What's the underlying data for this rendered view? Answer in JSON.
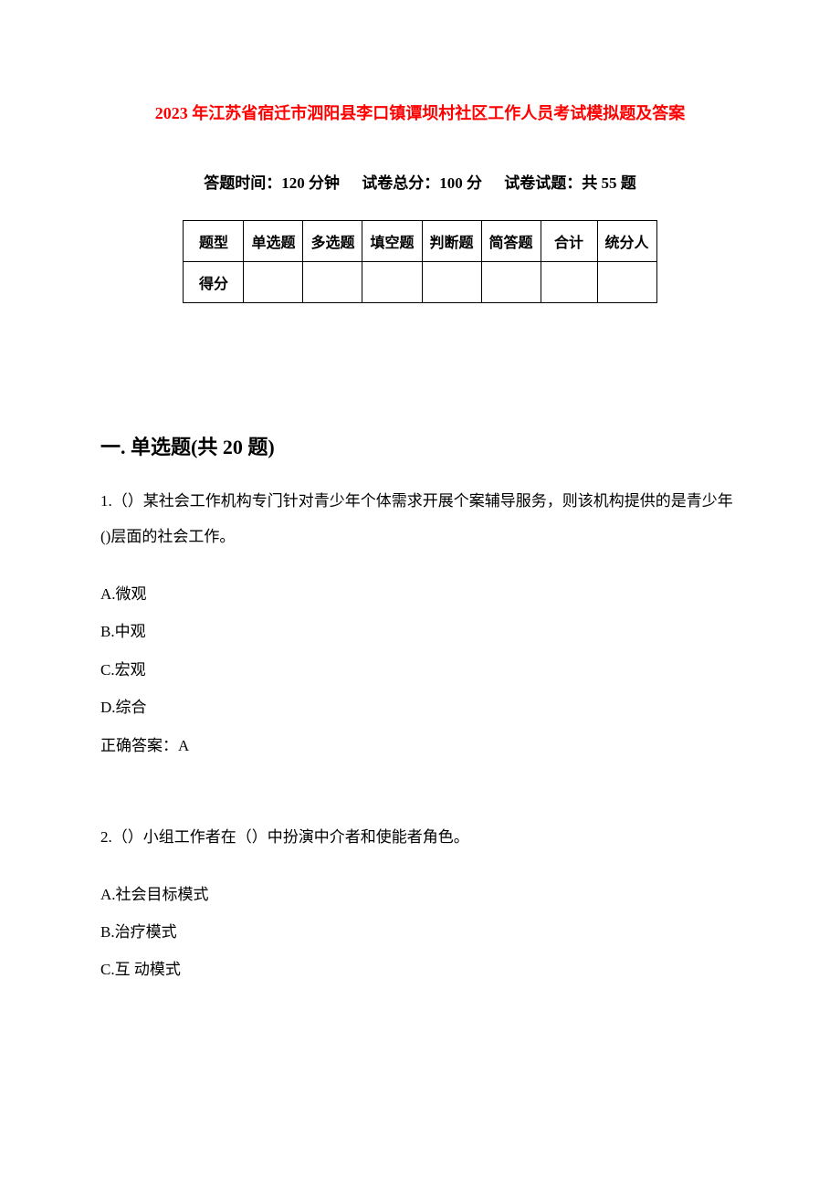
{
  "title": "2023 年江苏省宿迁市泗阳县李口镇谭坝村社区工作人员考试模拟题及答案",
  "meta": {
    "time_label": "答题时间：120 分钟",
    "total_label": "试卷总分：100 分",
    "count_label": "试卷试题：共 55 题"
  },
  "scoreTable": {
    "headerRow": [
      "题型",
      "单选题",
      "多选题",
      "填空题",
      "判断题",
      "简答题",
      "合计",
      "统分人"
    ],
    "scoreRowLabel": "得分"
  },
  "section1": {
    "title": "一. 单选题(共 20 题)",
    "q1": {
      "text": "1.（）某社会工作机构专门针对青少年个体需求开展个案辅导服务，则该机构提供的是青少年()层面的社会工作。",
      "optA": "A.微观",
      "optB": "B.中观",
      "optC": "C.宏观",
      "optD": "D.综合",
      "answer": "正确答案：A"
    },
    "q2": {
      "text": "2.（）小组工作者在（）中扮演中介者和使能者角色。",
      "optA": "A.社会目标模式",
      "optB": "B.治疗模式",
      "optC": "C.互 动模式"
    }
  },
  "colors": {
    "title_color": "#ff0000",
    "text_color": "#000000",
    "background": "#ffffff",
    "border": "#000000"
  },
  "typography": {
    "title_fontsize": 18,
    "meta_fontsize": 17,
    "section_fontsize": 22,
    "body_fontsize": 17
  }
}
